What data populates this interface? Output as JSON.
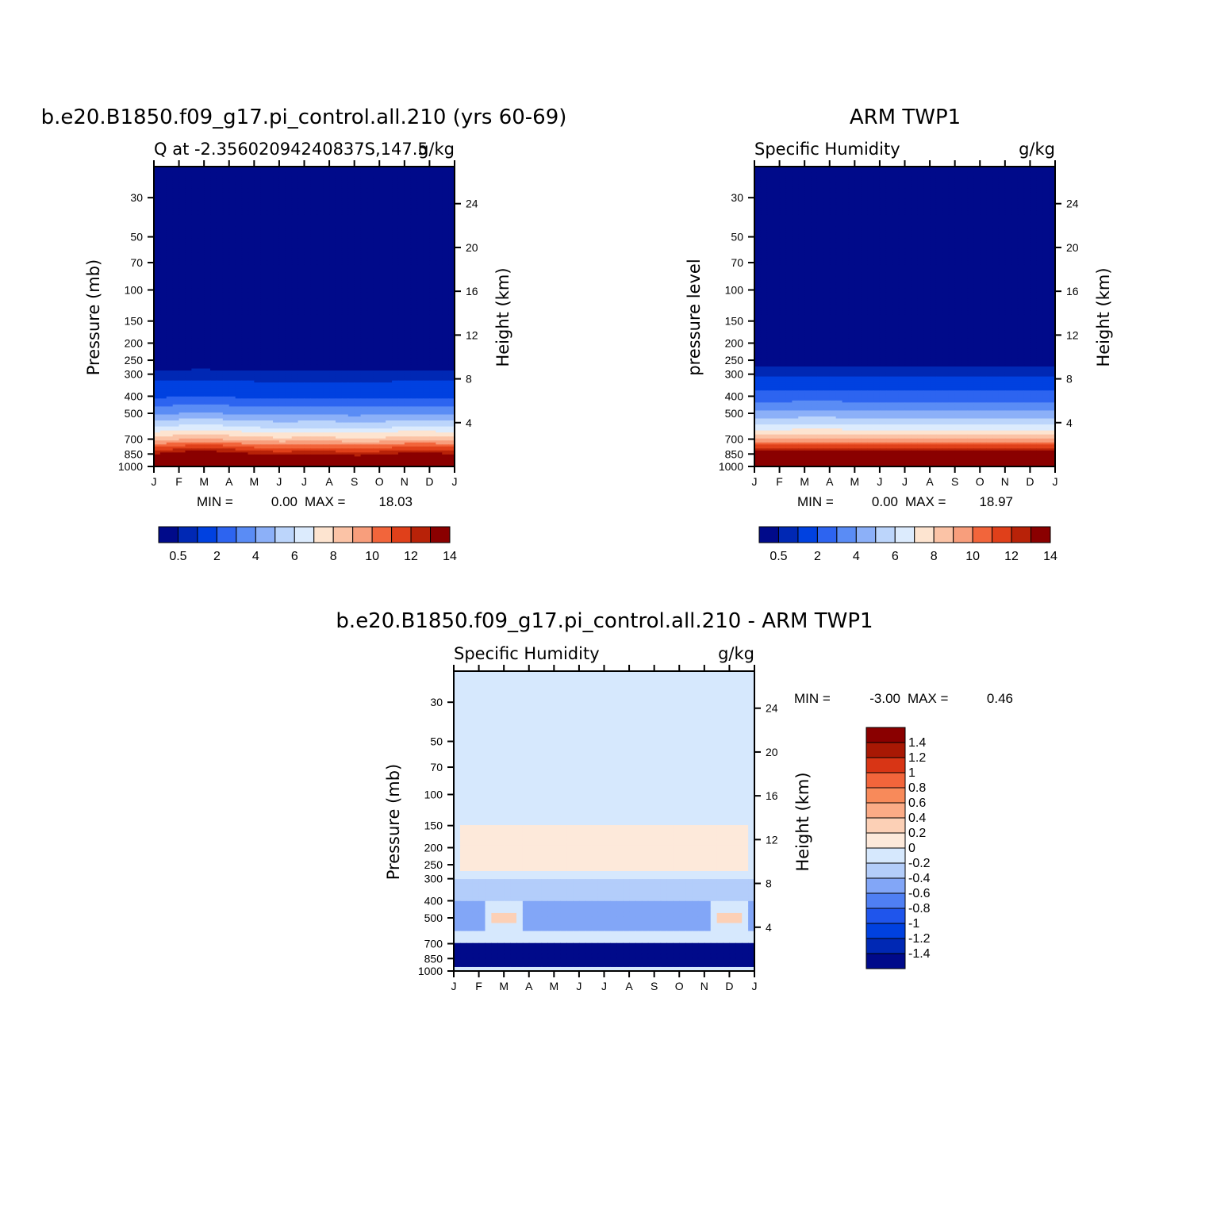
{
  "chart_data": [
    {
      "type": "heatmap",
      "title": "b.e20.B1850.f09_g17.pi_control.all.210 (yrs 60-69)",
      "left_string": "Q at -2.35602094240837S,147.5",
      "right_string": "g/kg",
      "ylabel": "Pressure (mb)",
      "ylabel_right": "Height (km)",
      "x_tick_labels": [
        "J",
        "F",
        "M",
        "A",
        "M",
        "J",
        "J",
        "A",
        "S",
        "O",
        "N",
        "D",
        "J"
      ],
      "y_pressure_ticks": [
        "30",
        "50",
        "70",
        "100",
        "150",
        "200",
        "250",
        "300",
        "400",
        "500",
        "700",
        "850",
        "1000"
      ],
      "y_height_ticks": [
        "24",
        "20",
        "16",
        "12",
        "8",
        "4"
      ],
      "stats": {
        "min_label": "MIN =",
        "min": "0.00",
        "max_label": "MAX =",
        "max": "18.03"
      },
      "colorbar_labels": [
        "0.5",
        "2",
        "4",
        "6",
        "8",
        "10",
        "12",
        "14"
      ],
      "colorbar_levels": [
        0.5,
        1,
        2,
        3,
        4,
        5,
        6,
        7,
        8,
        9,
        10,
        11,
        12,
        13,
        14
      ],
      "colorbar_colors": [
        "#000a8a",
        "#0028b4",
        "#0041e0",
        "#2d64f0",
        "#5a8cf5",
        "#8cb0f8",
        "#bcd5fb",
        "#dcebfd",
        "#fde4d0",
        "#fbc3a6",
        "#f89e7c",
        "#f2653b",
        "#e0401a",
        "#b82208",
        "#8a0000"
      ],
      "profile_pressure_mb": [
        1000,
        850,
        700,
        600,
        500,
        400,
        300,
        250,
        200
      ],
      "profile_q_gkg": [
        17.0,
        13.0,
        8.5,
        6.0,
        3.8,
        1.8,
        0.6,
        0.2,
        0.05
      ],
      "seasonal_level_offset": [
        0,
        0.2,
        0.35,
        0.15,
        0,
        -0.1,
        -0.05,
        -0.05,
        -0.15,
        -0.1,
        0.1,
        0.1,
        0
      ],
      "ylim_pressure_mb": [
        1000,
        20
      ]
    },
    {
      "type": "heatmap",
      "title": "ARM TWP1",
      "left_string": "Specific Humidity",
      "right_string": "g/kg",
      "ylabel": "pressure level",
      "ylabel_right": "Height (km)",
      "x_tick_labels": [
        "J",
        "F",
        "M",
        "A",
        "M",
        "J",
        "J",
        "A",
        "S",
        "O",
        "N",
        "D",
        "J"
      ],
      "y_pressure_ticks": [
        "30",
        "50",
        "70",
        "100",
        "150",
        "200",
        "250",
        "300",
        "400",
        "500",
        "700",
        "850",
        "1000"
      ],
      "y_height_ticks": [
        "24",
        "20",
        "16",
        "12",
        "8",
        "4"
      ],
      "stats": {
        "min_label": "MIN =",
        "min": "0.00",
        "max_label": "MAX =",
        "max": "18.97"
      },
      "colorbar_labels": [
        "0.5",
        "2",
        "4",
        "6",
        "8",
        "10",
        "12",
        "14"
      ],
      "colorbar_levels": [
        0.5,
        1,
        2,
        3,
        4,
        5,
        6,
        7,
        8,
        9,
        10,
        11,
        12,
        13,
        14
      ],
      "colorbar_colors": [
        "#000a8a",
        "#0028b4",
        "#0041e0",
        "#2d64f0",
        "#5a8cf5",
        "#8cb0f8",
        "#bcd5fb",
        "#dcebfd",
        "#fde4d0",
        "#fbc3a6",
        "#f89e7c",
        "#f2653b",
        "#e0401a",
        "#b82208",
        "#8a0000"
      ],
      "profile_pressure_mb": [
        1000,
        850,
        700,
        600,
        500,
        400,
        300,
        250,
        200
      ],
      "profile_q_gkg": [
        18.0,
        14.0,
        9.0,
        6.5,
        4.3,
        2.4,
        0.8,
        0.25,
        0.05
      ],
      "seasonal_level_offset": [
        0,
        0,
        0.05,
        0.05,
        0,
        0,
        0,
        0,
        0,
        -0.05,
        0,
        0,
        0
      ],
      "ylim_pressure_mb": [
        1000,
        20
      ]
    },
    {
      "type": "heatmap",
      "title": "b.e20.B1850.f09_g17.pi_control.all.210 - ARM TWP1",
      "left_string": "Specific Humidity",
      "right_string": "g/kg",
      "ylabel": "Pressure (mb)",
      "ylabel_right": "Height (km)",
      "x_tick_labels": [
        "J",
        "F",
        "M",
        "A",
        "M",
        "J",
        "J",
        "A",
        "S",
        "O",
        "N",
        "D",
        "J"
      ],
      "y_pressure_ticks": [
        "30",
        "50",
        "70",
        "100",
        "150",
        "200",
        "250",
        "300",
        "400",
        "500",
        "700",
        "850",
        "1000"
      ],
      "y_height_ticks": [
        "24",
        "20",
        "16",
        "12",
        "8",
        "4"
      ],
      "stats": {
        "min_label": "MIN =",
        "min": "-3.00",
        "max_label": "MAX =",
        "max": "0.46"
      },
      "colorbar_labels": [
        "1.4",
        "1.2",
        "1",
        "0.8",
        "0.6",
        "0.4",
        "0.2",
        "0",
        "-0.2",
        "-0.4",
        "-0.6",
        "-0.8",
        "-1",
        "-1.2",
        "-1.4"
      ],
      "colorbar_levels": [
        -1.4,
        -1.2,
        -1,
        -0.8,
        -0.6,
        -0.4,
        -0.2,
        0,
        0.2,
        0.4,
        0.6,
        0.8,
        1,
        1.2,
        1.4
      ],
      "colorbar_colors": [
        "#000a8a",
        "#0028b4",
        "#0041e0",
        "#1f55ec",
        "#4f7ff3",
        "#82a6f7",
        "#b3cdfa",
        "#d6e8fd",
        "#fde9da",
        "#fcd0b6",
        "#fbab86",
        "#f88a5a",
        "#f2653b",
        "#d83515",
        "#a81804",
        "#8a0000"
      ],
      "anomaly_regions": [
        {
          "label": "0",
          "value": -0.1,
          "pressure_range_mb": [
            20,
            1000
          ]
        },
        {
          "label": "0.2",
          "value": 0.1,
          "pressure_range_mb": [
            150,
            270
          ]
        },
        {
          "label": "-0.4",
          "value": -0.3,
          "pressure_range_mb": [
            300,
            420
          ]
        },
        {
          "label": "-0.6",
          "value": -0.5,
          "pressure_range_mb": [
            400,
            600
          ]
        },
        {
          "label": "-1.4",
          "value": -1.6,
          "pressure_range_mb": [
            700,
            950
          ]
        },
        {
          "label": "0.4",
          "value": 0.35,
          "pressure_range_mb": [
            470,
            540
          ]
        }
      ],
      "ylim_pressure_mb": [
        1000,
        20
      ]
    }
  ]
}
